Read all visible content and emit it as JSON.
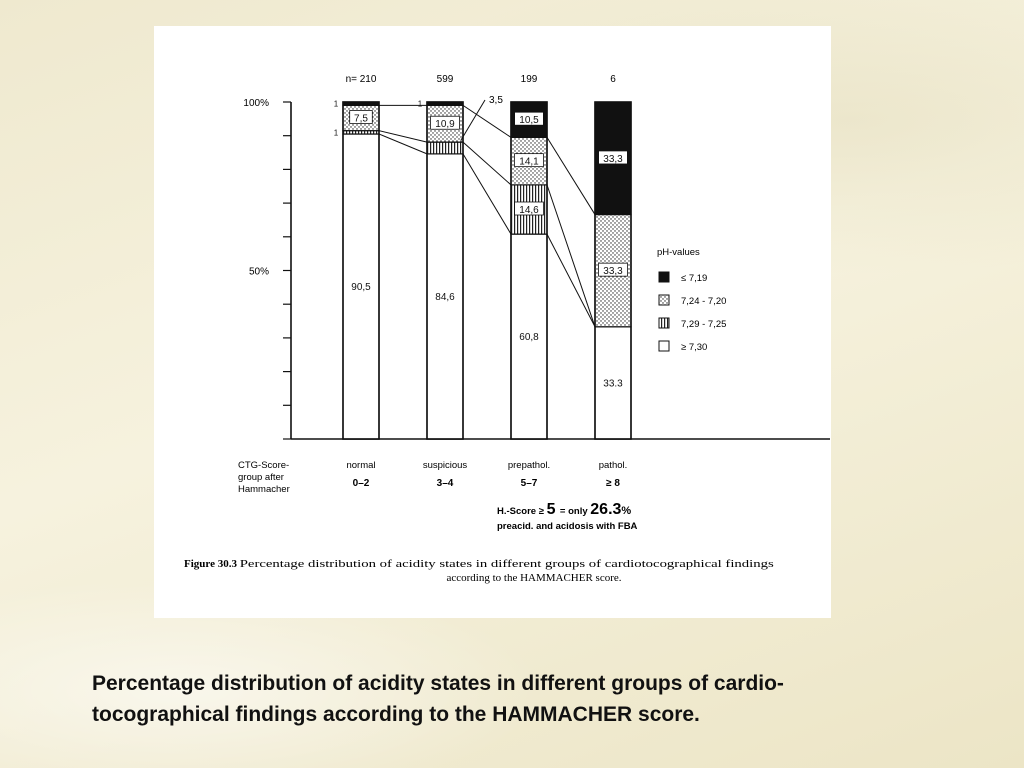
{
  "caption": {
    "line1": "Percentage distribution of acidity states in different groups of cardio-",
    "line2": "tocographical findings according to the HAMMACHER score."
  },
  "colors": {
    "background": "#f4efd9",
    "panel": "#ffffff",
    "ink": "#111111"
  },
  "chart_data": {
    "type": "bar",
    "stacked": true,
    "normalized_percent": true,
    "y_ticks": [
      {
        "value": 100,
        "label": "100%"
      },
      {
        "value": 50,
        "label": "50%"
      }
    ],
    "ylim": [
      0,
      100
    ],
    "x_title_lines": [
      "CTG-Score-",
      "group  after",
      "Hammacher"
    ],
    "n_prefix": "n= ",
    "categories": [
      {
        "name": "normal",
        "range": "0–2",
        "n": "210"
      },
      {
        "name": "suspicious",
        "range": "3–4",
        "n": "599"
      },
      {
        "name": "prepathol.",
        "range": "5–7",
        "n": "199"
      },
      {
        "name": "pathol.",
        "range": "≥ 8",
        "n": "6"
      }
    ],
    "series": [
      {
        "name": "≥ 7,30",
        "fill": "white",
        "values": [
          90.5,
          84.6,
          60.8,
          33.3
        ],
        "labels": [
          "90,5",
          "84,6",
          "60,8",
          "33.3"
        ]
      },
      {
        "name": "7,29 - 7,25",
        "fill": "vertical-lines",
        "values": [
          1,
          3.5,
          14.6,
          0
        ],
        "labels": [
          "1",
          "",
          "14,6",
          ""
        ]
      },
      {
        "name": "7,24 - 7,20",
        "fill": "dots",
        "values": [
          7.5,
          10.9,
          14.1,
          33.3
        ],
        "labels": [
          "7,5",
          "10,9",
          "14,1",
          "33,3"
        ]
      },
      {
        "name": "≤ 7,19",
        "fill": "black",
        "values": [
          1,
          1,
          10.5,
          33.3
        ],
        "labels": [
          "1",
          "1",
          "10,5",
          "33,3"
        ]
      }
    ],
    "callout_label": "3,5",
    "legend_title": "pH-values",
    "legend_position": "right",
    "annotation": {
      "line1_prefix": "H.-Score ≥",
      "line1_score": "5",
      "line1_mid": "= only",
      "line1_value": "26.3",
      "line1_suffix": "%",
      "line2": "preacid. and acidosis with FBA"
    },
    "figure_caption": {
      "label": "Figure 30.3",
      "line1": "Percentage distribution of acidity states in different groups of cardiotocographical findings",
      "line2": "according to the HAMMACHER score."
    }
  }
}
